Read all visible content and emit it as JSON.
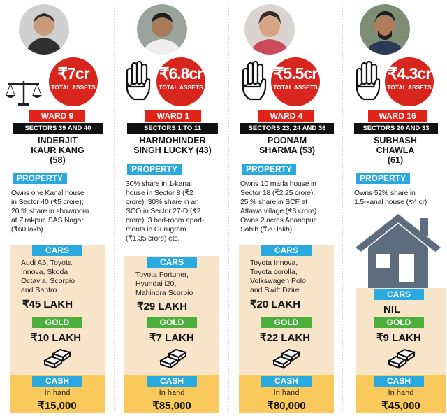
{
  "candidates": [
    {
      "assets": "₹7cr",
      "assets_label": "TOTAL ASSETS",
      "ward": "WARD 9",
      "sectors": "SECTORS 39 AND 40",
      "name_line1": "INDERJIT",
      "name_line2": "KAUR KANG",
      "name_line3": "(58)",
      "property_label": "PROPERTY",
      "property_lines": [
        "Owns one Kanal house",
        "in Sector 40 (₹5 crore);",
        "20 % share in showroom",
        "at Zirakpur, SAS Nagar",
        "(₹60 lakh)"
      ],
      "cars_label": "CARS",
      "cars_lines": [
        "Audi A6, Toyota",
        "Innova, Skoda",
        "Octavia, Scorpio",
        "and Santro"
      ],
      "cars_value": "₹45 LAKH",
      "gold_label": "GOLD",
      "gold_value": "₹10 LAKH",
      "cash_label": "CASH",
      "cash_sub": "In hand",
      "cash_value": "₹15,000",
      "symbol": "scales-icon"
    },
    {
      "assets": "₹6.8cr",
      "assets_label": "TOTAL ASSETS",
      "ward": "WARD 1",
      "sectors": "SECTORS 1 TO 11",
      "name_line1": "HARMOHINDER",
      "name_line2": "SINGH LUCKY (43)",
      "name_line3": "",
      "property_label": "PROPERTY",
      "property_lines": [
        "30% share in 1-kanal",
        "house in Sector 8 (₹2",
        "crore); 30% share in an",
        "SCO in Sector 27-D (₹2",
        "crore), 3 bed-room apart-",
        "ments in Gurugram",
        "(₹1.35 crore) etc."
      ],
      "cars_label": "CARS",
      "cars_lines": [
        "Toyota Fortuner,",
        "Hyundai i20,",
        "Mahindra Scorpio"
      ],
      "cars_value": "₹29 LAKH",
      "gold_label": "GOLD",
      "gold_value": "₹7 LAKH",
      "cash_label": "CASH",
      "cash_sub": "In hand",
      "cash_value": "₹85,000",
      "symbol": "hand-icon"
    },
    {
      "assets": "₹5.5cr",
      "assets_label": "TOTAL ASSETS",
      "ward": "WARD 4",
      "sectors": "SECTORS 23, 24 AND 36",
      "name_line1": "POONAM",
      "name_line2": "SHARMA (53)",
      "name_line3": "",
      "property_label": "PROPERTY",
      "property_lines": [
        "Owns 10 marla house in",
        "Sector 18 (₹2.25 crore);",
        "25 % share in SCF at",
        "Attawa village (₹3 crore)",
        "Owns 2 acres Anandpur",
        "Sahib (₹20 lakh)"
      ],
      "cars_label": "CARS",
      "cars_lines": [
        "Toyota Innova,",
        "Toyota corolla,",
        "Volkswagen Polo",
        "and Swift Dzire"
      ],
      "cars_value": "₹20 LAKH",
      "gold_label": "GOLD",
      "gold_value": "₹22 LAKH",
      "cash_label": "CASH",
      "cash_sub": "In hand",
      "cash_value": "₹80,000",
      "symbol": "hand-icon"
    },
    {
      "assets": "₹4.3cr",
      "assets_label": "TOTAL ASSETS",
      "ward": "WARD 16",
      "sectors": "SECTORS 20 AND 33",
      "name_line1": "SUBHASH",
      "name_line2": "CHAWLA",
      "name_line3": "(61)",
      "property_label": "PROPERTY",
      "property_lines": [
        "Owns 52% share in",
        "1.5-kanal house (₹4 cr)"
      ],
      "cars_label": "CARS",
      "cars_lines": [],
      "cars_value": "NIL",
      "gold_label": "GOLD",
      "gold_value": "₹9 LAKH",
      "cash_label": "CASH",
      "cash_sub": "In hand",
      "cash_value": "₹45,000",
      "symbol": "hand-icon"
    }
  ],
  "colors": {
    "red": "#e2231a",
    "blue": "#29a9df",
    "green": "#4caf3c",
    "peach": "#f8e4c8",
    "yellow": "#f9ca5b",
    "house": "#5d6d7e"
  }
}
